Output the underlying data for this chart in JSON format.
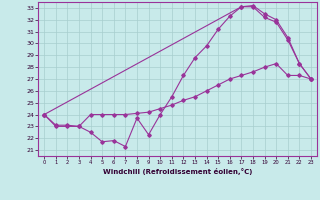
{
  "xlabel": "Windchill (Refroidissement éolien,°C)",
  "bg_color": "#c8eaea",
  "grid_color": "#a8cece",
  "line_color": "#993399",
  "xlim": [
    -0.5,
    23.5
  ],
  "ylim": [
    20.5,
    33.5
  ],
  "xticks": [
    0,
    1,
    2,
    3,
    4,
    5,
    6,
    7,
    8,
    9,
    10,
    11,
    12,
    13,
    14,
    15,
    16,
    17,
    18,
    19,
    20,
    21,
    22,
    23
  ],
  "yticks": [
    21,
    22,
    23,
    24,
    25,
    26,
    27,
    28,
    29,
    30,
    31,
    32,
    33
  ],
  "line1_x": [
    0,
    1,
    2,
    3,
    4,
    5,
    6,
    7,
    8,
    9,
    10,
    11,
    12,
    13,
    14,
    15,
    16,
    17,
    18,
    19,
    20,
    21,
    22,
    23
  ],
  "line1_y": [
    24,
    23,
    23,
    23,
    22.5,
    21.7,
    21.8,
    21.3,
    23.7,
    22.3,
    24,
    25.5,
    27.3,
    28.8,
    29.8,
    31.2,
    32.3,
    33.1,
    33.1,
    32.2,
    31.8,
    30.3,
    28.3,
    27.0
  ],
  "line2_x": [
    0,
    1,
    2,
    3,
    4,
    5,
    6,
    7,
    8,
    9,
    10,
    11,
    12,
    13,
    14,
    15,
    16,
    17,
    18,
    19,
    20,
    21,
    22,
    23
  ],
  "line2_y": [
    24,
    23.1,
    23.1,
    23,
    24.0,
    24.0,
    24.0,
    24.0,
    24.1,
    24.2,
    24.5,
    24.8,
    25.2,
    25.5,
    26.0,
    26.5,
    27.0,
    27.3,
    27.6,
    28.0,
    28.3,
    27.3,
    27.3,
    27.0
  ],
  "line3_x": [
    0,
    17,
    18,
    19,
    20,
    21,
    22,
    23
  ],
  "line3_y": [
    24,
    33.1,
    33.2,
    32.5,
    32.0,
    30.5,
    28.3,
    27.0
  ]
}
